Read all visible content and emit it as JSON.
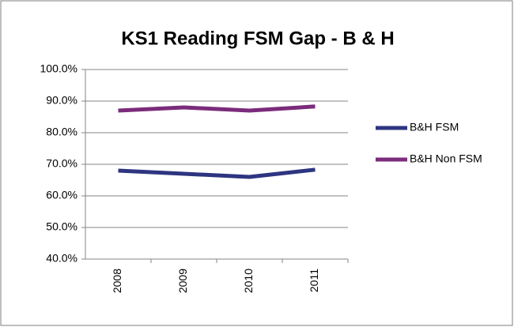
{
  "chart_data": {
    "type": "line",
    "title": "KS1 Reading FSM Gap - B & H",
    "categories": [
      "2008",
      "2009",
      "2010",
      "2011"
    ],
    "series": [
      {
        "name": "B&H FSM",
        "color": "#2e3580",
        "values": [
          68,
          67,
          66,
          68.3
        ]
      },
      {
        "name": "B&H Non FSM",
        "color": "#7b2c7b",
        "values": [
          87,
          88,
          87,
          88.3
        ]
      }
    ],
    "ylim": [
      40,
      100
    ],
    "yticks": [
      {
        "value": 40,
        "label": "40.0%"
      },
      {
        "value": 50,
        "label": "50.0%"
      },
      {
        "value": 60,
        "label": "60.0%"
      },
      {
        "value": 70,
        "label": "70.0%"
      },
      {
        "value": 80,
        "label": "80.0%"
      },
      {
        "value": 90,
        "label": "90.0%"
      },
      {
        "value": 100,
        "label": "100.0%"
      }
    ],
    "grid": true,
    "legend": "right"
  }
}
